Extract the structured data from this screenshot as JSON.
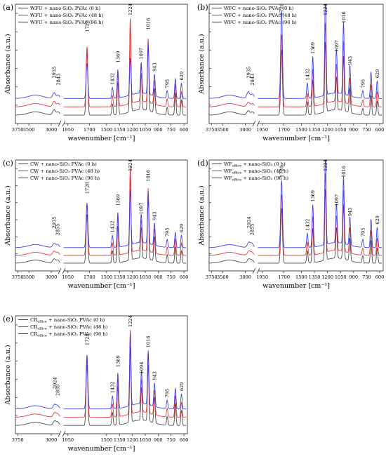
{
  "figure": {
    "y_label": "Absorbance (a.u.)",
    "x_label": "wavenumber [cm⁻¹]",
    "x_ticks_full": [
      "3750",
      "3500",
      "3000",
      "1950",
      "1700",
      "1500",
      "1350",
      "1200",
      "1050",
      "900",
      "750",
      "600"
    ],
    "x_ticks_compact": [
      "3750",
      "3000",
      "1950",
      "1500",
      "1350",
      "1200",
      "1050",
      "900",
      "750",
      "600"
    ],
    "series_colors": [
      "#444444",
      "#e8313a",
      "#3a3ae8"
    ]
  },
  "chart_data": [
    {
      "type": "line",
      "panel": "(a)",
      "x_ticks": "full",
      "legend": [
        "WFU + nano-SiO₂ PVAc (0 h)",
        "WFU + nano-SiO₂ PVAc (48 h)",
        "WFU + nano-SiO₂ PVAc (96 h)"
      ],
      "peaks": [
        {
          "x": 2935,
          "label": "2935",
          "h": [
            0.05,
            0.05,
            0.05
          ]
        },
        {
          "x": 2843,
          "label": "2843",
          "h": [
            0.03,
            0.03,
            0.03
          ]
        },
        {
          "x": 1728,
          "label": "1728",
          "h": [
            0.58,
            0.55,
            0.32
          ]
        },
        {
          "x": 1432,
          "label": "1432",
          "h": [
            0.1,
            0.1,
            0.1
          ]
        },
        {
          "x": 1369,
          "label": "1369",
          "h": [
            0.3,
            0.3,
            0.26
          ]
        },
        {
          "x": 1224,
          "label": "1224",
          "h": [
            0.8,
            0.78,
            0.34
          ]
        },
        {
          "x": 1097,
          "label": "1097",
          "h": [
            0.33,
            0.33,
            0.28
          ]
        },
        {
          "x": 1016,
          "label": "1016",
          "h": [
            0.6,
            0.58,
            0.46
          ]
        },
        {
          "x": 943,
          "label": "943",
          "h": [
            0.22,
            0.22,
            0.2
          ]
        },
        {
          "x": 795,
          "label": "795",
          "h": [
            0.07,
            0.07,
            0.07
          ]
        },
        {
          "x": 700,
          "label": "",
          "h": [
            0.2,
            0.2,
            0.18
          ]
        },
        {
          "x": 629,
          "label": "629",
          "h": [
            0.14,
            0.14,
            0.14
          ]
        }
      ]
    },
    {
      "type": "line",
      "panel": "(b)",
      "x_ticks": "full",
      "legend": [
        "WFC + nano-SiO₂ PVAc (0 h)",
        "WFC + nano-SiO₂ PVAc (48 h)",
        "WFC + nano-SiO₂ PVAc (96 h)"
      ],
      "peaks": [
        {
          "x": 2935,
          "label": "2935",
          "h": [
            0.04,
            0.04,
            0.06
          ]
        },
        {
          "x": 2843,
          "label": "2843",
          "h": [
            0.03,
            0.03,
            0.04
          ]
        },
        {
          "x": 1728,
          "label": "1728",
          "h": [
            0.6,
            0.66,
            0.8
          ]
        },
        {
          "x": 1432,
          "label": "1432",
          "h": [
            0.12,
            0.12,
            0.14
          ]
        },
        {
          "x": 1369,
          "label": "1369",
          "h": [
            0.32,
            0.34,
            0.38
          ]
        },
        {
          "x": 1224,
          "label": "1224",
          "h": [
            0.64,
            0.74,
            0.92
          ]
        },
        {
          "x": 1097,
          "label": "1097",
          "h": [
            0.3,
            0.34,
            0.4
          ]
        },
        {
          "x": 1016,
          "label": "1016",
          "h": [
            0.5,
            0.56,
            0.66
          ]
        },
        {
          "x": 943,
          "label": "943",
          "h": [
            0.22,
            0.24,
            0.28
          ]
        },
        {
          "x": 795,
          "label": "795",
          "h": [
            0.06,
            0.06,
            0.07
          ]
        },
        {
          "x": 700,
          "label": "",
          "h": [
            0.18,
            0.2,
            0.24
          ]
        },
        {
          "x": 629,
          "label": "629",
          "h": [
            0.13,
            0.14,
            0.16
          ]
        }
      ]
    },
    {
      "type": "line",
      "panel": "(c)",
      "x_ticks": "full",
      "legend": [
        "CW + nano-SiO₂ PVAc (0 h)",
        "CW + nano-SiO₂ PVAc (48 h)",
        "CW + nano-SiO₂ PVAc (96 h)"
      ],
      "peaks": [
        {
          "x": 2935,
          "label": "2935",
          "h": [
            0.04,
            0.04,
            0.04
          ]
        },
        {
          "x": 2855,
          "label": "2855",
          "h": [
            0.03,
            0.03,
            0.03
          ]
        },
        {
          "x": 1728,
          "label": "1728",
          "h": [
            0.48,
            0.5,
            0.44
          ]
        },
        {
          "x": 1432,
          "label": "1432",
          "h": [
            0.12,
            0.12,
            0.12
          ]
        },
        {
          "x": 1369,
          "label": "1369",
          "h": [
            0.36,
            0.38,
            0.34
          ]
        },
        {
          "x": 1224,
          "label": "1224",
          "h": [
            0.82,
            0.86,
            0.54
          ]
        },
        {
          "x": 1097,
          "label": "1097",
          "h": [
            0.3,
            0.3,
            0.28
          ]
        },
        {
          "x": 1016,
          "label": "1016",
          "h": [
            0.6,
            0.62,
            0.5
          ]
        },
        {
          "x": 943,
          "label": "943",
          "h": [
            0.24,
            0.24,
            0.22
          ]
        },
        {
          "x": 795,
          "label": "795",
          "h": [
            0.08,
            0.08,
            0.08
          ]
        },
        {
          "x": 700,
          "label": "",
          "h": [
            0.16,
            0.16,
            0.15
          ]
        },
        {
          "x": 629,
          "label": "629",
          "h": [
            0.12,
            0.12,
            0.12
          ]
        }
      ]
    },
    {
      "type": "line",
      "panel": "(d)",
      "x_ticks": "full",
      "legend": [
        "WFₒffice + nano-SiO₂ (0 h)",
        "WFₒffice + nano-SiO₂ (48 h)",
        "WFₒffice + nano-SiO₂ (96 h)"
      ],
      "legend_parts": [
        {
          "pre": "WF",
          "sub": "office",
          "post": " + nano-SiO₂ (0 h)"
        },
        {
          "pre": "WF",
          "sub": "office",
          "post": " + nano-SiO₂ (48 h)"
        },
        {
          "pre": "WF",
          "sub": "office",
          "post": " + nano-SiO₂ (96 h)"
        }
      ],
      "peaks": [
        {
          "x": 2924,
          "label": "2924",
          "h": [
            0.04,
            0.04,
            0.05
          ]
        },
        {
          "x": 2855,
          "label": "2855",
          "h": [
            0.03,
            0.03,
            0.04
          ]
        },
        {
          "x": 1728,
          "label": "1728",
          "h": [
            0.54,
            0.6,
            0.66
          ]
        },
        {
          "x": 1432,
          "label": "1432",
          "h": [
            0.12,
            0.13,
            0.14
          ]
        },
        {
          "x": 1369,
          "label": "1369",
          "h": [
            0.34,
            0.38,
            0.42
          ]
        },
        {
          "x": 1224,
          "label": "1224",
          "h": [
            0.7,
            0.78,
            0.9
          ]
        },
        {
          "x": 1097,
          "label": "1097",
          "h": [
            0.3,
            0.34,
            0.38
          ]
        },
        {
          "x": 1016,
          "label": "1016",
          "h": [
            0.54,
            0.6,
            0.66
          ]
        },
        {
          "x": 943,
          "label": "943",
          "h": [
            0.22,
            0.25,
            0.28
          ]
        },
        {
          "x": 795,
          "label": "795",
          "h": [
            0.07,
            0.07,
            0.08
          ]
        },
        {
          "x": 700,
          "label": "",
          "h": [
            0.22,
            0.24,
            0.28
          ]
        },
        {
          "x": 629,
          "label": "629",
          "h": [
            0.15,
            0.17,
            0.2
          ]
        }
      ]
    },
    {
      "type": "line",
      "panel": "(e)",
      "x_ticks": "compact",
      "legend": [
        "CRₒffice + nano-SiO₂ PVAc (0 h)",
        "CRₒffice + nano-SiO₂ PVAc (48 h)",
        "CRₒffice + nano-SiO₂ PVAc (96 h)"
      ],
      "legend_parts": [
        {
          "pre": "CR",
          "sub": "office",
          "post": " + nano-SiO₂ PVAc (0 h)"
        },
        {
          "pre": "CR",
          "sub": "office",
          "post": " + nano-SiO₂ PVAc (48 h)"
        },
        {
          "pre": "CR",
          "sub": "office",
          "post": " + nano-SiO₂ PVAc (96 h)"
        }
      ],
      "peaks": [
        {
          "x": 2924,
          "label": "2924",
          "h": [
            0.04,
            0.04,
            0.04
          ]
        },
        {
          "x": 2855,
          "label": "2855",
          "h": [
            0.03,
            0.03,
            0.03
          ]
        },
        {
          "x": 1728,
          "label": "1728",
          "h": [
            0.56,
            0.54,
            0.5
          ]
        },
        {
          "x": 1432,
          "label": "1432",
          "h": [
            0.12,
            0.12,
            0.12
          ]
        },
        {
          "x": 1369,
          "label": "1369",
          "h": [
            0.36,
            0.35,
            0.33
          ]
        },
        {
          "x": 1224,
          "label": "1224",
          "h": [
            0.7,
            0.78,
            0.66
          ]
        },
        {
          "x": 1094,
          "label": "1094",
          "h": [
            0.3,
            0.3,
            0.3
          ]
        },
        {
          "x": 1016,
          "label": "1016",
          "h": [
            0.52,
            0.54,
            0.5
          ]
        },
        {
          "x": 943,
          "label": "943",
          "h": [
            0.24,
            0.23,
            0.22
          ]
        },
        {
          "x": 795,
          "label": "795",
          "h": [
            0.08,
            0.08,
            0.08
          ]
        },
        {
          "x": 700,
          "label": "",
          "h": [
            0.2,
            0.2,
            0.19
          ]
        },
        {
          "x": 629,
          "label": "629",
          "h": [
            0.14,
            0.14,
            0.14
          ]
        }
      ]
    }
  ]
}
